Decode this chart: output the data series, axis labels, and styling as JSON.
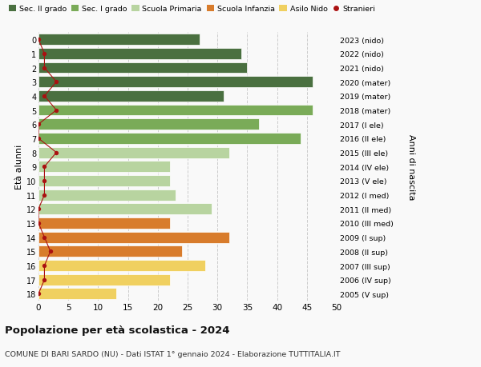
{
  "ages": [
    18,
    17,
    16,
    15,
    14,
    13,
    12,
    11,
    10,
    9,
    8,
    7,
    6,
    5,
    4,
    3,
    2,
    1,
    0
  ],
  "bar_values": [
    27,
    34,
    35,
    46,
    31,
    46,
    37,
    44,
    32,
    22,
    22,
    23,
    29,
    22,
    32,
    24,
    28,
    22,
    13
  ],
  "stranieri_values": [
    0,
    1,
    1,
    3,
    1,
    3,
    0,
    0,
    3,
    1,
    1,
    1,
    0,
    0,
    1,
    2,
    1,
    1,
    0
  ],
  "right_labels": [
    "2005 (V sup)",
    "2006 (IV sup)",
    "2007 (III sup)",
    "2008 (II sup)",
    "2009 (I sup)",
    "2010 (III med)",
    "2011 (II med)",
    "2012 (I med)",
    "2013 (V ele)",
    "2014 (IV ele)",
    "2015 (III ele)",
    "2016 (II ele)",
    "2017 (I ele)",
    "2018 (mater)",
    "2019 (mater)",
    "2020 (mater)",
    "2021 (nido)",
    "2022 (nido)",
    "2023 (nido)"
  ],
  "bar_colors": [
    "#4a7040",
    "#4a7040",
    "#4a7040",
    "#4a7040",
    "#4a7040",
    "#7aab58",
    "#7aab58",
    "#7aab58",
    "#b8d4a0",
    "#b8d4a0",
    "#b8d4a0",
    "#b8d4a0",
    "#b8d4a0",
    "#d87c2c",
    "#d87c2c",
    "#d87c2c",
    "#f0d060",
    "#f0d060",
    "#f0d060"
  ],
  "legend_labels": [
    "Sec. II grado",
    "Sec. I grado",
    "Scuola Primaria",
    "Scuola Infanzia",
    "Asilo Nido",
    "Stranieri"
  ],
  "legend_colors_list": [
    "#4a7040",
    "#7aab58",
    "#b8d4a0",
    "#d87c2c",
    "#f0d060",
    "#aa1111"
  ],
  "title": "Popolazione per età scolastica - 2024",
  "subtitle": "COMUNE DI BARI SARDO (NU) - Dati ISTAT 1° gennaio 2024 - Elaborazione TUTTITALIA.IT",
  "ylabel_left": "Età alunni",
  "ylabel_right": "Anni di nascita",
  "xlim": [
    0,
    50
  ],
  "xticks": [
    0,
    5,
    10,
    15,
    20,
    25,
    30,
    35,
    40,
    45,
    50
  ],
  "background_color": "#f9f9f9",
  "grid_color": "#cccccc",
  "stranieri_color": "#aa1111"
}
